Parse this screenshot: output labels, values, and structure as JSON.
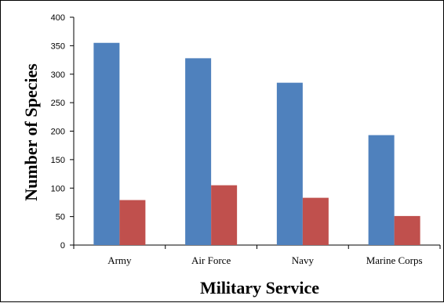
{
  "chart_data": {
    "type": "bar",
    "title": "",
    "xlabel": "Military Service",
    "ylabel": "Number of Species",
    "categories": [
      "Army",
      "Air Force",
      "Navy",
      "Marine Corps"
    ],
    "series": [
      {
        "color": "#4f81bd",
        "values": [
          355,
          328,
          285,
          193
        ]
      },
      {
        "color": "#c0504d",
        "values": [
          79,
          105,
          83,
          51
        ]
      }
    ],
    "ylim": [
      0,
      400
    ],
    "yticks": [
      0,
      50,
      100,
      150,
      200,
      250,
      300,
      350,
      400
    ],
    "ytick_labels": [
      "0",
      "50",
      "100",
      "150",
      "200",
      "250",
      "300",
      "350",
      "400"
    ],
    "grid": false,
    "legend": "none"
  }
}
